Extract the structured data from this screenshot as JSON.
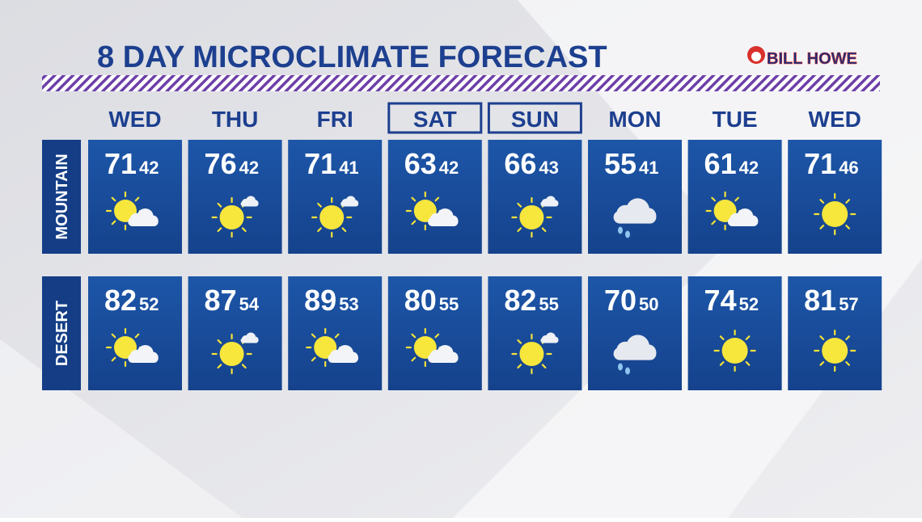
{
  "header": {
    "title": "8 DAY MICROCLIMATE FORECAST",
    "logo": "BILL HOWE"
  },
  "days": [
    "WED",
    "THU",
    "FRI",
    "SAT",
    "SUN",
    "MON",
    "TUE",
    "WED"
  ],
  "rows": [
    {
      "label": "MOUNTAIN",
      "cells": [
        {
          "high": 71,
          "low": 42
        },
        {
          "high": 76,
          "low": 42
        },
        {
          "high": 71,
          "low": 41
        },
        {
          "high": 63,
          "low": 42
        },
        {
          "high": 66,
          "low": 43
        },
        {
          "high": 55,
          "low": 41
        },
        {
          "high": 61,
          "low": 42
        },
        {
          "high": 71,
          "low": 46
        }
      ]
    },
    {
      "label": "DESERT",
      "cells": [
        {
          "high": 82,
          "low": 52
        },
        {
          "high": 87,
          "low": 54
        },
        {
          "high": 89,
          "low": 53
        },
        {
          "high": 80,
          "low": 55
        },
        {
          "high": 82,
          "low": 55
        },
        {
          "high": 70,
          "low": 50
        },
        {
          "high": 74,
          "low": 52
        },
        {
          "high": 81,
          "low": 57
        }
      ]
    }
  ]
}
